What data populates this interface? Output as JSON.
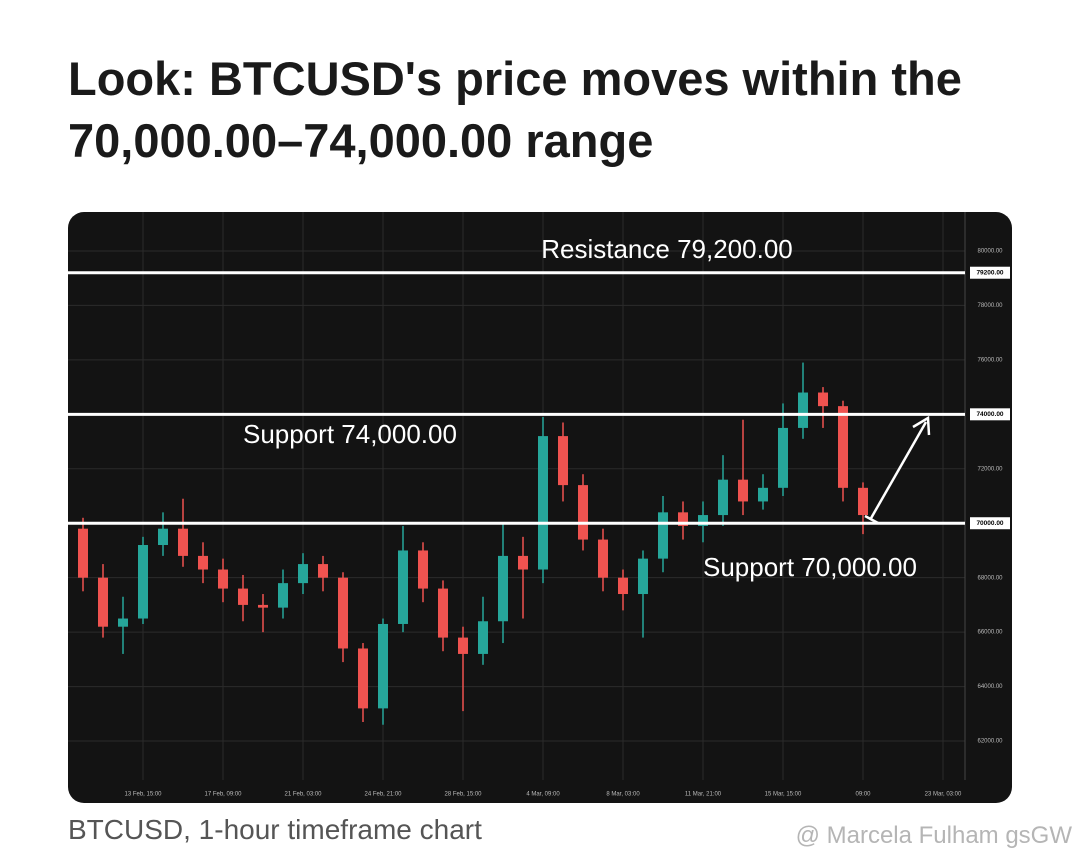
{
  "header": {
    "title_lines": [
      "Look: BTCUSD's price moves within the",
      "70,000.00–74,000.00 range"
    ]
  },
  "chart_data": {
    "type": "candlestick",
    "up_color": "#26a69a",
    "down_color": "#ef5350",
    "grid": true,
    "categories": [
      null,
      null,
      null,
      "13 Feb, 15:00",
      null,
      null,
      null,
      "17 Feb, 09:00",
      null,
      null,
      null,
      "21 Feb, 03:00",
      null,
      null,
      null,
      "24 Feb, 21:00",
      null,
      null,
      null,
      "28 Feb, 15:00",
      null,
      null,
      null,
      "4 Mar, 09:00",
      null,
      null,
      null,
      "8 Mar, 03:00",
      null,
      null,
      null,
      "11 Mar, 21:00",
      null,
      null,
      null,
      "15 Mar, 15:00",
      null,
      null,
      null,
      "09:00",
      null,
      null,
      null,
      "23 Mar, 03:00",
      null
    ],
    "candles": [
      {
        "open": 69800,
        "high": 70200,
        "low": 67500,
        "close": 68000
      },
      {
        "open": 68000,
        "high": 68500,
        "low": 65800,
        "close": 66200
      },
      {
        "open": 66200,
        "high": 67300,
        "low": 65200,
        "close": 66500
      },
      {
        "open": 66500,
        "high": 69500,
        "low": 66300,
        "close": 69200
      },
      {
        "open": 69200,
        "high": 70400,
        "low": 68800,
        "close": 69800
      },
      {
        "open": 69800,
        "high": 70900,
        "low": 68400,
        "close": 68800
      },
      {
        "open": 68800,
        "high": 69300,
        "low": 67800,
        "close": 68300
      },
      {
        "open": 68300,
        "high": 68700,
        "low": 67100,
        "close": 67600
      },
      {
        "open": 67600,
        "high": 68100,
        "low": 66400,
        "close": 67000
      },
      {
        "open": 67000,
        "high": 67400,
        "low": 66000,
        "close": 66900
      },
      {
        "open": 66900,
        "high": 68300,
        "low": 66500,
        "close": 67800
      },
      {
        "open": 67800,
        "high": 68900,
        "low": 67400,
        "close": 68500
      },
      {
        "open": 68500,
        "high": 68800,
        "low": 67500,
        "close": 68000
      },
      {
        "open": 68000,
        "high": 68200,
        "low": 64900,
        "close": 65400
      },
      {
        "open": 65400,
        "high": 65600,
        "low": 62700,
        "close": 63200
      },
      {
        "open": 63200,
        "high": 66500,
        "low": 62600,
        "close": 66300
      },
      {
        "open": 66300,
        "high": 69900,
        "low": 66000,
        "close": 69000
      },
      {
        "open": 69000,
        "high": 69300,
        "low": 67100,
        "close": 67600
      },
      {
        "open": 67600,
        "high": 67900,
        "low": 65300,
        "close": 65800
      },
      {
        "open": 65800,
        "high": 66200,
        "low": 63100,
        "close": 65200
      },
      {
        "open": 65200,
        "high": 67300,
        "low": 64800,
        "close": 66400
      },
      {
        "open": 66400,
        "high": 70000,
        "low": 65600,
        "close": 68800
      },
      {
        "open": 68800,
        "high": 69500,
        "low": 66500,
        "close": 68300
      },
      {
        "open": 68300,
        "high": 73900,
        "low": 67800,
        "close": 73200
      },
      {
        "open": 73200,
        "high": 73700,
        "low": 70800,
        "close": 71400
      },
      {
        "open": 71400,
        "high": 71800,
        "low": 69000,
        "close": 69400
      },
      {
        "open": 69400,
        "high": 69800,
        "low": 67500,
        "close": 68000
      },
      {
        "open": 68000,
        "high": 68300,
        "low": 66800,
        "close": 67400
      },
      {
        "open": 67400,
        "high": 69000,
        "low": 65800,
        "close": 68700
      },
      {
        "open": 68700,
        "high": 71000,
        "low": 68200,
        "close": 70400
      },
      {
        "open": 70400,
        "high": 70800,
        "low": 69400,
        "close": 69900
      },
      {
        "open": 69900,
        "high": 70800,
        "low": 69300,
        "close": 70300
      },
      {
        "open": 70300,
        "high": 72500,
        "low": 69900,
        "close": 71600
      },
      {
        "open": 71600,
        "high": 73800,
        "low": 70300,
        "close": 70800
      },
      {
        "open": 70800,
        "high": 71800,
        "low": 70500,
        "close": 71300
      },
      {
        "open": 71300,
        "high": 74400,
        "low": 71000,
        "close": 73500
      },
      {
        "open": 73500,
        "high": 75900,
        "low": 73100,
        "close": 74800
      },
      {
        "open": 74800,
        "high": 75000,
        "low": 73500,
        "close": 74300
      },
      {
        "open": 74300,
        "high": 74500,
        "low": 70800,
        "close": 71300
      },
      {
        "open": 71300,
        "high": 71500,
        "low": 69600,
        "close": 70300
      },
      null,
      null,
      null,
      null,
      null
    ],
    "ylim": [
      60570,
      81430
    ],
    "yticks": [
      {
        "value": 62000,
        "label": "62000.00"
      },
      {
        "value": 64000,
        "label": "64000.00"
      },
      {
        "value": 66000,
        "label": "66000.00"
      },
      {
        "value": 68000,
        "label": "68000.00"
      },
      {
        "value": 72000,
        "label": "72000.00"
      },
      {
        "value": 76000,
        "label": "76000.00"
      },
      {
        "value": 78000,
        "label": "78000.00"
      },
      {
        "value": 80000,
        "label": "80000.00"
      }
    ],
    "levels": [
      {
        "value": 79200,
        "label": "79200.00",
        "annotation": "Resistance 79,200.00"
      },
      {
        "value": 74000,
        "label": "74000.00",
        "annotation": "Support 74,000.00"
      },
      {
        "value": 70000,
        "label": "70000.00",
        "annotation": "Support 70,000.00"
      }
    ]
  },
  "caption": "BTCUSD, 1-hour timeframe chart",
  "watermark": "@ Marcela Fulham gsGW"
}
